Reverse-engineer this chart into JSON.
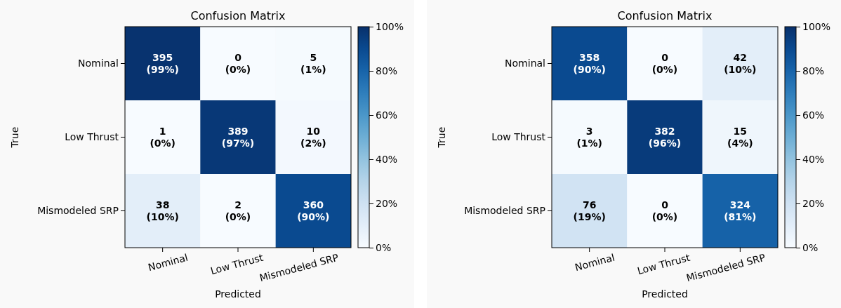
{
  "chart_data": [
    {
      "type": "heatmap",
      "title": "Confusion Matrix",
      "xlabel": "Predicted",
      "ylabel": "True",
      "categories": [
        "Nominal",
        "Low Thrust",
        "Mismodeled SRP"
      ],
      "y_categories": [
        "Nominal",
        "Low Thrust",
        "Mismodeled SRP"
      ],
      "cells": [
        [
          99,
          0,
          1
        ],
        [
          0,
          97,
          2
        ],
        [
          10,
          0,
          90
        ]
      ],
      "cell_labels": [
        [
          "395\n(99%)",
          "0\n(0%)",
          "5\n(1%)"
        ],
        [
          "1\n(0%)",
          "389\n(97%)",
          "10\n(2%)"
        ],
        [
          "38\n(10%)",
          "2\n(0%)",
          "360\n(90%)"
        ]
      ],
      "clim": [
        0,
        100
      ],
      "cticks": [
        {
          "value": 0,
          "label": "0%"
        },
        {
          "value": 20,
          "label": "20%"
        },
        {
          "value": 40,
          "label": "40%"
        },
        {
          "value": 60,
          "label": "60%"
        },
        {
          "value": 80,
          "label": "80%"
        },
        {
          "value": 100,
          "label": "100%"
        }
      ]
    },
    {
      "type": "heatmap",
      "title": "Confusion Matrix",
      "xlabel": "Predicted",
      "ylabel": "True",
      "categories": [
        "Nominal",
        "Low Thrust",
        "Mismodeled SRP"
      ],
      "y_categories": [
        "Nominal",
        "Low Thrust",
        "Mismodeled SRP"
      ],
      "cells": [
        [
          90,
          0,
          10
        ],
        [
          1,
          96,
          4
        ],
        [
          19,
          0,
          81
        ]
      ],
      "cell_labels": [
        [
          "358\n(90%)",
          "0\n(0%)",
          "42\n(10%)"
        ],
        [
          "3\n(1%)",
          "382\n(96%)",
          "15\n(4%)"
        ],
        [
          "76\n(19%)",
          "0\n(0%)",
          "324\n(81%)"
        ]
      ],
      "clim": [
        0,
        100
      ],
      "cticks": [
        {
          "value": 0,
          "label": "0%"
        },
        {
          "value": 20,
          "label": "20%"
        },
        {
          "value": 40,
          "label": "40%"
        },
        {
          "value": 60,
          "label": "60%"
        },
        {
          "value": 80,
          "label": "80%"
        },
        {
          "value": 100,
          "label": "100%"
        }
      ]
    }
  ]
}
